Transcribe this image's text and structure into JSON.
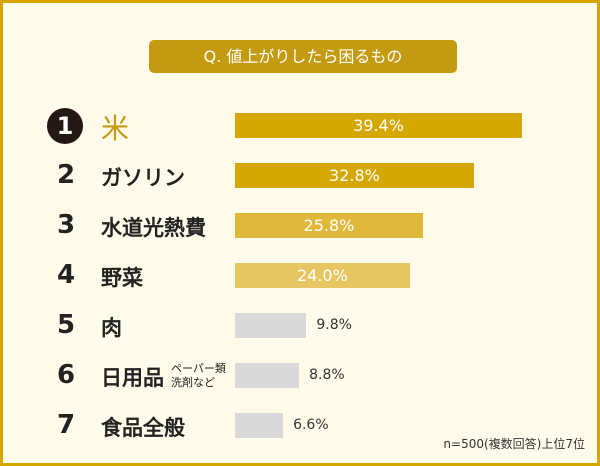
{
  "chart_data": {
    "type": "bar",
    "orientation": "horizontal",
    "title": "Q. 値上がりしたら困るもの",
    "ranks": [
      "1",
      "2",
      "3",
      "4",
      "5",
      "6",
      "7"
    ],
    "categories": [
      "米",
      "ガソリン",
      "水道光熱費",
      "野菜",
      "肉",
      "日用品",
      "食品全般"
    ],
    "category_notes": [
      "",
      "",
      "",
      "",
      "",
      "ペーパー類\n洗剤など",
      ""
    ],
    "values": [
      39.4,
      32.8,
      25.8,
      24.0,
      9.8,
      8.8,
      6.6
    ],
    "value_labels": [
      "39.4%",
      "32.8%",
      "25.8%",
      "24.0%",
      "9.8%",
      "8.8%",
      "6.6%"
    ],
    "bar_colors": [
      "#d4a800",
      "#d4a800",
      "#e0b93a",
      "#e6c660",
      "#d9d9d9",
      "#d9d9d9",
      "#d9d9d9"
    ],
    "footnote": "n=500(複数回答)上位7位",
    "xlim": [
      0,
      40
    ],
    "grid": false,
    "legend": "none"
  }
}
